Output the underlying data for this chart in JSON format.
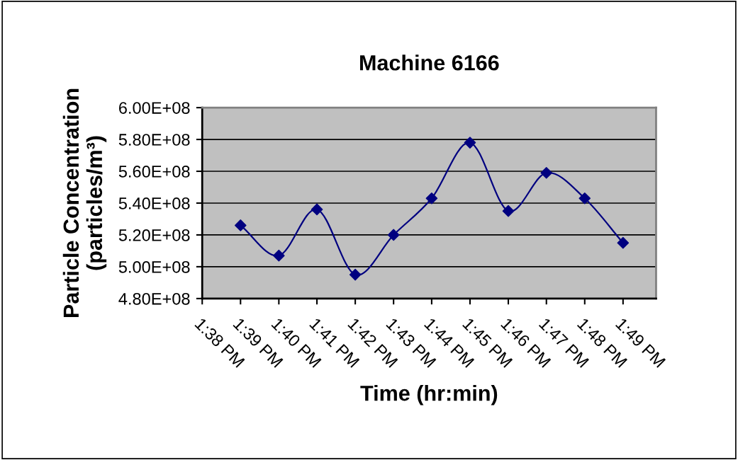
{
  "chart_data": {
    "type": "line",
    "title": "Machine 6166",
    "xlabel": "Time (hr:min)",
    "ylabel": "Particle Concentration\n(particles/m³)",
    "x": [
      13.65,
      13.6667,
      13.6833,
      13.7,
      13.7167,
      13.7333,
      13.75,
      13.7667,
      13.7833,
      13.8,
      13.8167
    ],
    "series": [
      {
        "color": "#000080",
        "values": [
          526000000,
          507000000,
          536000000,
          495000000,
          520000000,
          543000000,
          578000000,
          535000000,
          559000000,
          543000000,
          515000000
        ]
      }
    ],
    "xlim": [
      13.6333,
      13.8311
    ],
    "xticks": [
      {
        "value": 13.6333,
        "label": "1:38 PM"
      },
      {
        "value": 13.65,
        "label": "1:39 PM"
      },
      {
        "value": 13.6667,
        "label": "1:40 PM"
      },
      {
        "value": 13.6833,
        "label": "1:41 PM"
      },
      {
        "value": 13.7,
        "label": "1:42 PM"
      },
      {
        "value": 13.7167,
        "label": "1:43 PM"
      },
      {
        "value": 13.7333,
        "label": "1:44 PM"
      },
      {
        "value": 13.75,
        "label": "1:45 PM"
      },
      {
        "value": 13.7667,
        "label": "1:46 PM"
      },
      {
        "value": 13.7833,
        "label": "1:47 PM"
      },
      {
        "value": 13.8,
        "label": "1:48 PM"
      },
      {
        "value": 13.8167,
        "label": "1:49 PM"
      }
    ],
    "ylim": [
      480000000,
      600000000
    ],
    "yticks": [
      {
        "value": 480000000,
        "label": "4.80E+08"
      },
      {
        "value": 500000000,
        "label": "5.00E+08"
      },
      {
        "value": 520000000,
        "label": "5.20E+08"
      },
      {
        "value": 540000000,
        "label": "5.40E+08"
      },
      {
        "value": 560000000,
        "label": "5.60E+08"
      },
      {
        "value": 580000000,
        "label": "5.80E+08"
      },
      {
        "value": 600000000,
        "label": "6.00E+08"
      }
    ],
    "grid": "y",
    "legend": false,
    "marker": "diamond",
    "line_style": "solid"
  }
}
